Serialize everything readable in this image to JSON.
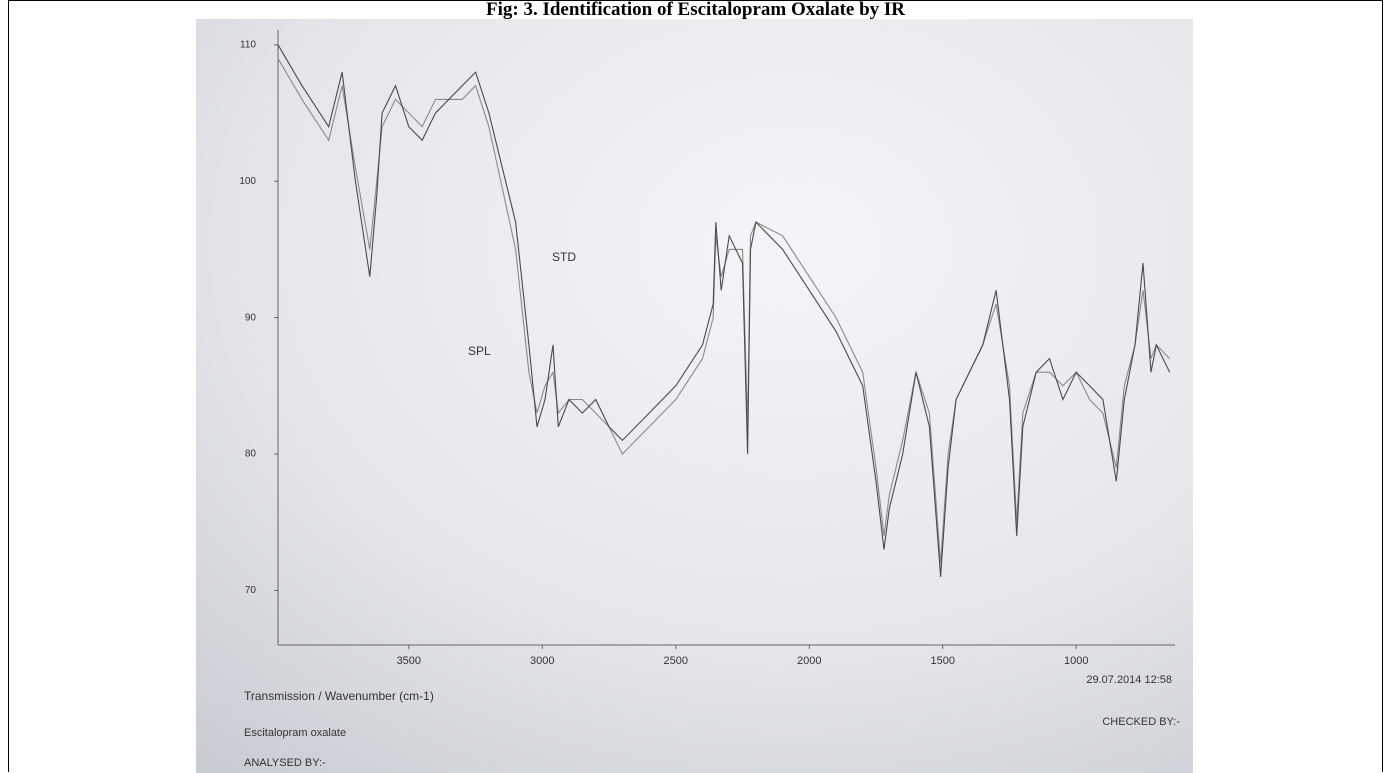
{
  "chart_data": {
    "type": "line",
    "title": "Fig: 3. Identification of Escitalopram Oxalate by IR",
    "x_label": "Transmission / Wavenumber (cm-1)",
    "date": "29.07.2014 12:58",
    "sample_name": "Escitalopram oxalate",
    "analysed_by": "ANALYSED BY:-",
    "checked_by": "CHECKED BY:-",
    "annotations": [
      "STD",
      "SPL"
    ],
    "xlim": [
      3990,
      630
    ],
    "ylim": [
      66,
      110.5
    ],
    "xticks": [
      3500,
      3000,
      2500,
      2000,
      1500,
      1000
    ],
    "yticks": [
      70,
      80,
      90,
      100,
      110
    ],
    "x": [
      3990,
      3900,
      3800,
      3750,
      3700,
      3646,
      3620,
      3600,
      3550,
      3500,
      3450,
      3400,
      3300,
      3250,
      3200,
      3100,
      3050,
      3020,
      2990,
      2960,
      2940,
      2900,
      2850,
      2800,
      2750,
      2700,
      2600,
      2500,
      2400,
      2360,
      2350,
      2330,
      2300,
      2250,
      2231,
      2220,
      2200,
      2100,
      2000,
      1900,
      1800,
      1750,
      1720,
      1700,
      1650,
      1600,
      1550,
      1508,
      1480,
      1450,
      1400,
      1350,
      1300,
      1250,
      1223,
      1200,
      1150,
      1100,
      1050,
      1000,
      950,
      900,
      850,
      820,
      780,
      750,
      720,
      700,
      650
    ],
    "series": [
      {
        "name": "STD",
        "color": "#8a8a8a",
        "values": [
          109,
          106,
          103,
          107,
          101,
          95,
          100,
          104,
          106,
          105,
          104,
          106,
          106,
          107,
          104,
          95,
          86,
          83,
          85,
          86,
          83,
          84,
          84,
          83,
          82,
          80,
          82,
          84,
          87,
          90,
          96,
          93,
          95,
          95,
          82,
          96,
          97,
          96,
          93,
          90,
          86,
          79,
          74,
          77,
          81,
          86,
          83,
          72,
          80,
          84,
          86,
          88,
          91,
          85,
          75,
          83,
          86,
          86,
          85,
          86,
          84,
          83,
          79,
          85,
          88,
          92,
          87,
          88,
          87
        ]
      },
      {
        "name": "SPL",
        "color": "#4a4a4a",
        "values": [
          110,
          107,
          104,
          108,
          100,
          93,
          99,
          105,
          107,
          104,
          103,
          105,
          107,
          108,
          105,
          97,
          88,
          82,
          84,
          88,
          82,
          84,
          83,
          84,
          82,
          81,
          83,
          85,
          88,
          91,
          97,
          92,
          96,
          94,
          80,
          95,
          97,
          95,
          92,
          89,
          85,
          78,
          73,
          76,
          80,
          86,
          82,
          71,
          79,
          84,
          86,
          88,
          92,
          84,
          74,
          82,
          86,
          87,
          84,
          86,
          85,
          84,
          78,
          84,
          88,
          94,
          86,
          88,
          86
        ]
      }
    ]
  }
}
